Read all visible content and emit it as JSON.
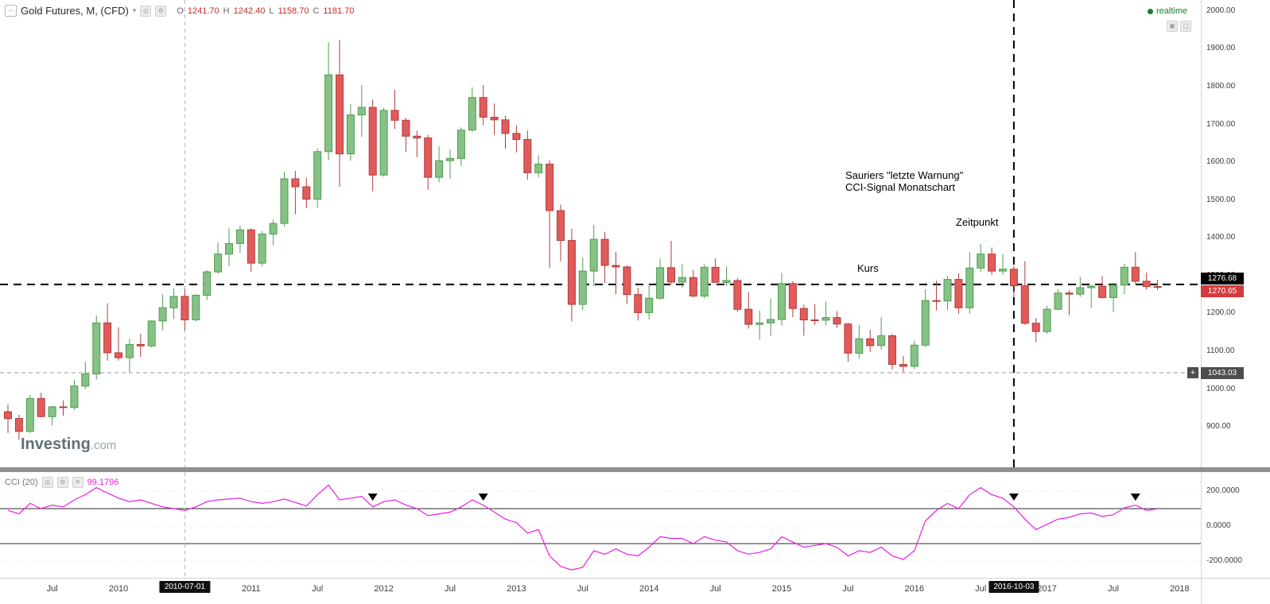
{
  "header": {
    "symbol_title": "Gold Futures, M, (CFD)",
    "ohlc": {
      "o_label": "O",
      "o": "1241.70",
      "h_label": "H",
      "h": "1242.40",
      "l_label": "L",
      "l": "1158.70",
      "c_label": "C",
      "c": "1181.70"
    }
  },
  "realtime": {
    "label": "realtime",
    "color": "#1e7e34"
  },
  "icons": {
    "collapse": "−",
    "caret_down": "▾",
    "eye": "◎",
    "settings": "⚙",
    "close": "✕",
    "maximize": "▣",
    "more": "▢",
    "plus": "+",
    "signal_marker": "▼"
  },
  "annotations": {
    "warning_line1": "Sauriers \"letzte Warnung\"",
    "warning_line2": "CCI-Signal Monatschart",
    "zeitpunkt": "Zeitpunkt",
    "kurs": "Kurs"
  },
  "price_axis": {
    "kurs_badge": "1276.68",
    "last_badge": "1270.65",
    "alert_badge": "1043.03"
  },
  "cci_header": {
    "title": "CCI (20)",
    "value": "99.1796"
  },
  "logo": {
    "part1": "Investing",
    "part2": ".com"
  },
  "colors": {
    "candle_up_fill": "#86c186",
    "candle_up_border": "#4f9d4f",
    "candle_down_fill": "#e25b5b",
    "candle_down_border": "#b23b3b",
    "cci_line": "#ea1de5",
    "kurs_line": "#000000",
    "alert_line": "#9b9b9b",
    "last_price_badge": "#d63a3a",
    "alert_badge": "#4d4d4d",
    "realtime_green": "#1e7e34"
  },
  "chart_data": [
    {
      "type": "candlestick",
      "title": "Gold Futures, M, (CFD)",
      "interval": "1M",
      "start_month": "2009-03",
      "ylim": [
        793,
        2029
      ],
      "kurs_price": 1276.68,
      "last_price": 1270.65,
      "alert_price": 1043.03,
      "y_ticks": [
        {
          "v": 2000,
          "label": "2000.00"
        },
        {
          "v": 1900,
          "label": "1900.00"
        },
        {
          "v": 1800,
          "label": "1800.00"
        },
        {
          "v": 1700,
          "label": "1700.00"
        },
        {
          "v": 1600,
          "label": "1600.00"
        },
        {
          "v": 1500,
          "label": "1500.00"
        },
        {
          "v": 1400,
          "label": "1400.00"
        },
        {
          "v": 1300,
          "label": "1300.00"
        },
        {
          "v": 1200,
          "label": "1200.00"
        },
        {
          "v": 1100,
          "label": "1100.00"
        },
        {
          "v": 1000,
          "label": "1000.00"
        },
        {
          "v": 900,
          "label": "900.00"
        }
      ],
      "x_ticks": [
        {
          "i": 4,
          "label": "Jul"
        },
        {
          "i": 10,
          "label": "2010"
        },
        {
          "i": 22,
          "label": "2011"
        },
        {
          "i": 28,
          "label": "Jul"
        },
        {
          "i": 34,
          "label": "2012"
        },
        {
          "i": 40,
          "label": "Jul"
        },
        {
          "i": 46,
          "label": "2013"
        },
        {
          "i": 52,
          "label": "Jul"
        },
        {
          "i": 58,
          "label": "2014"
        },
        {
          "i": 64,
          "label": "Jul"
        },
        {
          "i": 70,
          "label": "2015"
        },
        {
          "i": 76,
          "label": "Jul"
        },
        {
          "i": 82,
          "label": "2016"
        },
        {
          "i": 88,
          "label": "Jul"
        },
        {
          "i": 94,
          "label": "2017"
        },
        {
          "i": 100,
          "label": "Jul"
        },
        {
          "i": 106,
          "label": "2018"
        }
      ],
      "x_badges": [
        {
          "i": 16,
          "label": "2010-07-01"
        },
        {
          "i": 91,
          "label": "2016-10-03"
        }
      ],
      "drawn_lines": [
        {
          "type": "hline",
          "price": 1276.68,
          "color": "#000000",
          "width": 2,
          "dash": "10,7",
          "name": "kurs-hline"
        },
        {
          "type": "hline",
          "price": 1043.03,
          "color": "#9b9b9b",
          "width": 1,
          "dash": "5,4",
          "name": "alert-hline"
        },
        {
          "type": "vline",
          "month_index": 16,
          "color": "#b5b5b5",
          "width": 1,
          "dash": "5,4",
          "span": "both",
          "name": "vline-2010-07-01"
        },
        {
          "type": "vline",
          "month_index": 91,
          "color": "#000000",
          "width": 2,
          "dash": "10,7",
          "span": "price",
          "name": "vline-2016-10-03"
        }
      ],
      "ohlc": [
        [
          940,
          959,
          884,
          922
        ],
        [
          922,
          932,
          865,
          888
        ],
        [
          888,
          985,
          884,
          975
        ],
        [
          975,
          990,
          925,
          927
        ],
        [
          927,
          956,
          904,
          953
        ],
        [
          953,
          970,
          929,
          951
        ],
        [
          951,
          1025,
          945,
          1008
        ],
        [
          1008,
          1072,
          1000,
          1040
        ],
        [
          1040,
          1195,
          1025,
          1175
        ],
        [
          1175,
          1227,
          1075,
          1096
        ],
        [
          1096,
          1163,
          1075,
          1083
        ],
        [
          1083,
          1133,
          1045,
          1118
        ],
        [
          1118,
          1146,
          1085,
          1114
        ],
        [
          1114,
          1182,
          1110,
          1180
        ],
        [
          1180,
          1250,
          1155,
          1215
        ],
        [
          1215,
          1266,
          1185,
          1245
        ],
        [
          1245,
          1265,
          1155,
          1183
        ],
        [
          1183,
          1250,
          1179,
          1248
        ],
        [
          1248,
          1315,
          1235,
          1310
        ],
        [
          1310,
          1388,
          1305,
          1357
        ],
        [
          1357,
          1425,
          1325,
          1385
        ],
        [
          1385,
          1432,
          1360,
          1421
        ],
        [
          1421,
          1425,
          1310,
          1333
        ],
        [
          1333,
          1418,
          1325,
          1410
        ],
        [
          1410,
          1448,
          1380,
          1438
        ],
        [
          1438,
          1575,
          1430,
          1556
        ],
        [
          1556,
          1577,
          1462,
          1535
        ],
        [
          1535,
          1559,
          1478,
          1502
        ],
        [
          1502,
          1637,
          1480,
          1628
        ],
        [
          1628,
          1917,
          1605,
          1831
        ],
        [
          1831,
          1923,
          1535,
          1622
        ],
        [
          1622,
          1754,
          1604,
          1725
        ],
        [
          1725,
          1804,
          1667,
          1745
        ],
        [
          1745,
          1766,
          1523,
          1566
        ],
        [
          1566,
          1744,
          1562,
          1737
        ],
        [
          1737,
          1792,
          1688,
          1711
        ],
        [
          1711,
          1717,
          1627,
          1669
        ],
        [
          1669,
          1683,
          1613,
          1664
        ],
        [
          1664,
          1672,
          1527,
          1560
        ],
        [
          1560,
          1642,
          1547,
          1604
        ],
        [
          1604,
          1633,
          1556,
          1610
        ],
        [
          1610,
          1692,
          1589,
          1685
        ],
        [
          1685,
          1798,
          1681,
          1771
        ],
        [
          1771,
          1804,
          1698,
          1719
        ],
        [
          1719,
          1755,
          1672,
          1712
        ],
        [
          1712,
          1723,
          1636,
          1676
        ],
        [
          1676,
          1697,
          1626,
          1660
        ],
        [
          1660,
          1684,
          1554,
          1572
        ],
        [
          1572,
          1618,
          1560,
          1595
        ],
        [
          1595,
          1605,
          1321,
          1472
        ],
        [
          1472,
          1488,
          1338,
          1393
        ],
        [
          1393,
          1424,
          1179,
          1224
        ],
        [
          1224,
          1348,
          1208,
          1312
        ],
        [
          1312,
          1434,
          1272,
          1396
        ],
        [
          1396,
          1416,
          1281,
          1327
        ],
        [
          1327,
          1362,
          1251,
          1323
        ],
        [
          1323,
          1327,
          1225,
          1250
        ],
        [
          1250,
          1268,
          1181,
          1202
        ],
        [
          1202,
          1280,
          1184,
          1240
        ],
        [
          1240,
          1345,
          1237,
          1321
        ],
        [
          1321,
          1392,
          1277,
          1283
        ],
        [
          1283,
          1331,
          1268,
          1295
        ],
        [
          1295,
          1315,
          1242,
          1246
        ],
        [
          1246,
          1330,
          1240,
          1322
        ],
        [
          1322,
          1346,
          1281,
          1282
        ],
        [
          1282,
          1324,
          1273,
          1287
        ],
        [
          1287,
          1293,
          1204,
          1211
        ],
        [
          1211,
          1256,
          1160,
          1171
        ],
        [
          1171,
          1208,
          1130,
          1175
        ],
        [
          1175,
          1239,
          1140,
          1184
        ],
        [
          1184,
          1308,
          1168,
          1279
        ],
        [
          1279,
          1285,
          1190,
          1213
        ],
        [
          1213,
          1223,
          1141,
          1183
        ],
        [
          1183,
          1225,
          1170,
          1182
        ],
        [
          1182,
          1232,
          1168,
          1189
        ],
        [
          1189,
          1206,
          1162,
          1172
        ],
        [
          1172,
          1175,
          1072,
          1095
        ],
        [
          1095,
          1170,
          1080,
          1133
        ],
        [
          1133,
          1156,
          1098,
          1115
        ],
        [
          1115,
          1191,
          1104,
          1141
        ],
        [
          1141,
          1146,
          1052,
          1065
        ],
        [
          1065,
          1088,
          1045,
          1060
        ],
        [
          1060,
          1128,
          1053,
          1116
        ],
        [
          1116,
          1264,
          1111,
          1234
        ],
        [
          1234,
          1287,
          1208,
          1233
        ],
        [
          1233,
          1299,
          1209,
          1290
        ],
        [
          1290,
          1306,
          1199,
          1215
        ],
        [
          1215,
          1362,
          1199,
          1320
        ],
        [
          1320,
          1384,
          1310,
          1357
        ],
        [
          1357,
          1374,
          1302,
          1312
        ],
        [
          1312,
          1357,
          1302,
          1317
        ],
        [
          1317,
          1325,
          1243,
          1273
        ],
        [
          1273,
          1338,
          1170,
          1174
        ],
        [
          1174,
          1188,
          1124,
          1152
        ],
        [
          1152,
          1220,
          1146,
          1211
        ],
        [
          1211,
          1264,
          1211,
          1254
        ],
        [
          1254,
          1261,
          1195,
          1251
        ],
        [
          1251,
          1297,
          1244,
          1268
        ],
        [
          1268,
          1276,
          1214,
          1272
        ],
        [
          1272,
          1299,
          1240,
          1242
        ],
        [
          1242,
          1275,
          1204,
          1275
        ],
        [
          1275,
          1331,
          1251,
          1322
        ],
        [
          1322,
          1362,
          1278,
          1285
        ],
        [
          1285,
          1308,
          1263,
          1271
        ],
        [
          1271,
          1289,
          1262,
          1270.65
        ]
      ]
    },
    {
      "type": "line",
      "title": "CCI (20)",
      "current_value": "99.1796",
      "ylim": [
        -295,
        309
      ],
      "bands": [
        100,
        -100
      ],
      "y_ticks": [
        {
          "v": 200,
          "label": "200.0000"
        },
        {
          "v": 0,
          "label": "0.0000"
        },
        {
          "v": -200,
          "label": "-200.0000"
        }
      ],
      "signal_marker_months": [
        33,
        43,
        91,
        102
      ],
      "values": [
        90,
        70,
        130,
        100,
        120,
        110,
        150,
        180,
        220,
        190,
        160,
        140,
        150,
        130,
        110,
        100,
        90,
        110,
        140,
        150,
        155,
        160,
        140,
        130,
        140,
        155,
        135,
        115,
        180,
        235,
        150,
        160,
        170,
        110,
        140,
        150,
        120,
        100,
        60,
        70,
        80,
        110,
        150,
        120,
        80,
        40,
        20,
        -40,
        -20,
        -170,
        -230,
        -250,
        -235,
        -140,
        -160,
        -130,
        -160,
        -170,
        -120,
        -60,
        -70,
        -70,
        -100,
        -60,
        -80,
        -90,
        -140,
        -160,
        -150,
        -130,
        -60,
        -90,
        -120,
        -110,
        -100,
        -120,
        -170,
        -140,
        -150,
        -120,
        -170,
        -190,
        -140,
        30,
        90,
        130,
        100,
        180,
        220,
        180,
        160,
        110,
        40,
        -20,
        10,
        40,
        50,
        70,
        75,
        55,
        65,
        105,
        120,
        90,
        99.18
      ]
    }
  ]
}
